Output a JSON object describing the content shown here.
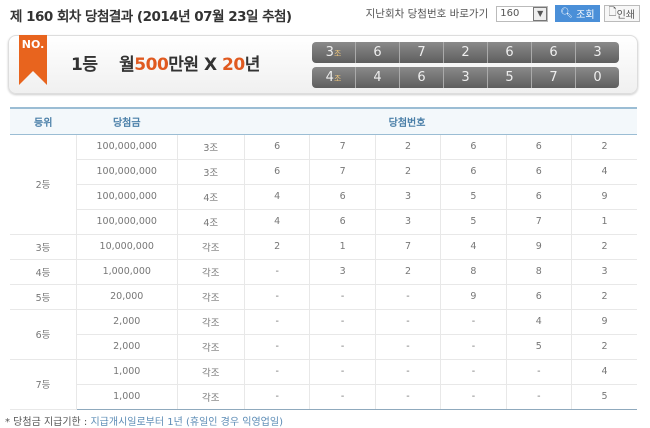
{
  "header": {
    "title": "제 160 회차 당첨결과 (2014년 07월 23일 추첨)",
    "goto_label": "지난회차 당첨번호 바로가기",
    "round_value": "160",
    "search_label": "조회",
    "print_label": "인쇄"
  },
  "banner": {
    "badge": "NO.",
    "rank": "1등",
    "prize_prefix": "월",
    "prize_amount": "500",
    "prize_unit": "만원 X ",
    "prize_years": "20",
    "prize_years_unit": "년",
    "lines": [
      {
        "group": "3",
        "group_unit": "조",
        "numbers": [
          "6",
          "7",
          "2",
          "6",
          "6",
          "3"
        ]
      },
      {
        "group": "4",
        "group_unit": "조",
        "numbers": [
          "4",
          "6",
          "3",
          "5",
          "7",
          "0"
        ]
      }
    ]
  },
  "table": {
    "headers": [
      "등위",
      "당첨금",
      "당첨번호"
    ],
    "rows": [
      {
        "rank": "2등",
        "span": 4,
        "amount": "100,000,000",
        "group": "3조",
        "nums": [
          "6",
          "7",
          "2",
          "6",
          "6",
          "2"
        ]
      },
      {
        "amount": "100,000,000",
        "group": "3조",
        "nums": [
          "6",
          "7",
          "2",
          "6",
          "6",
          "4"
        ]
      },
      {
        "amount": "100,000,000",
        "group": "4조",
        "nums": [
          "4",
          "6",
          "3",
          "5",
          "6",
          "9"
        ]
      },
      {
        "amount": "100,000,000",
        "group": "4조",
        "nums": [
          "4",
          "6",
          "3",
          "5",
          "7",
          "1"
        ]
      },
      {
        "rank": "3등",
        "span": 1,
        "amount": "10,000,000",
        "group": "각조",
        "nums": [
          "2",
          "1",
          "7",
          "4",
          "9",
          "2"
        ]
      },
      {
        "rank": "4등",
        "span": 1,
        "amount": "1,000,000",
        "group": "각조",
        "nums": [
          "-",
          "3",
          "2",
          "8",
          "8",
          "3"
        ]
      },
      {
        "rank": "5등",
        "span": 1,
        "amount": "20,000",
        "group": "각조",
        "nums": [
          "-",
          "-",
          "-",
          "9",
          "6",
          "2"
        ]
      },
      {
        "rank": "6등",
        "span": 2,
        "amount": "2,000",
        "group": "각조",
        "nums": [
          "-",
          "-",
          "-",
          "-",
          "4",
          "9"
        ]
      },
      {
        "amount": "2,000",
        "group": "각조",
        "nums": [
          "-",
          "-",
          "-",
          "-",
          "5",
          "2"
        ]
      },
      {
        "rank": "7등",
        "span": 2,
        "amount": "1,000",
        "group": "각조",
        "nums": [
          "-",
          "-",
          "-",
          "-",
          "-",
          "4"
        ]
      },
      {
        "amount": "1,000",
        "group": "각조",
        "nums": [
          "-",
          "-",
          "-",
          "-",
          "-",
          "5"
        ]
      }
    ]
  },
  "footer": {
    "label": "* 당첨금 지급기한 : ",
    "text": "지급개시일로부터 1년 (휴일인 경우 익영업일)"
  }
}
